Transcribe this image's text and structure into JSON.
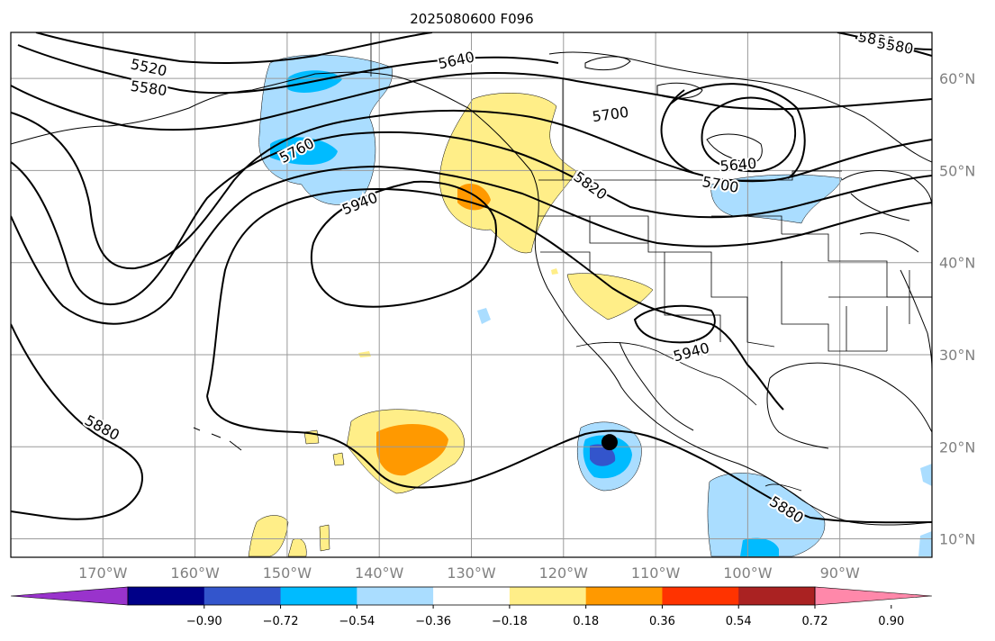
{
  "title": "2025080600 F096",
  "map": {
    "lon_range": [
      -180,
      -80
    ],
    "lat_range": [
      8,
      65
    ],
    "grid_lons": [
      -170,
      -160,
      -150,
      -140,
      -130,
      -120,
      -110,
      -100,
      -90,
      -80
    ],
    "grid_lats": [
      10,
      20,
      30,
      40,
      50,
      60
    ],
    "lon_labels": [
      "170°W",
      "160°W",
      "150°W",
      "140°W",
      "130°W",
      "120°W",
      "110°W",
      "100°W",
      "90°W"
    ],
    "lat_labels": [
      "10°N",
      "20°N",
      "30°N",
      "40°N",
      "50°N",
      "60°N"
    ],
    "contour_labels": [
      "5520",
      "5580",
      "5640",
      "5700",
      "5760",
      "5820",
      "5880",
      "5940",
      "5640",
      "5700",
      "5880",
      "5940",
      "5880",
      "5580"
    ],
    "storm_marker": {
      "lon": -115,
      "lat": 20.5
    }
  },
  "colorbar": {
    "tick_labels": [
      "−0.90",
      "−0.72",
      "−0.54",
      "−0.36",
      "−0.18",
      "0.18",
      "0.36",
      "0.54",
      "0.72",
      "0.90"
    ],
    "colors": [
      "#9933cc",
      "#000088",
      "#3355cc",
      "#00bbff",
      "#aaddff",
      "#ffffff",
      "#ffee88",
      "#ff9900",
      "#ff3300",
      "#aa2222",
      "#ff88aa"
    ]
  }
}
